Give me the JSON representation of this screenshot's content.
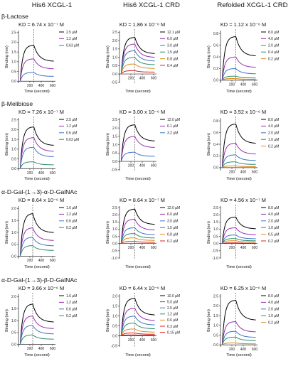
{
  "column_headers": [
    "His6 XCGL-1",
    "His6 XCGL-1 CRD",
    "Refolded XCGL-1 CRD"
  ],
  "row_titles": [
    "β-Lactose",
    "β-Melibiose",
    "α-D-Gal-(1→3)-α-D-GalNAc",
    "α-D-Gal-(1→3)-β-D-GalNAc"
  ],
  "colors": {
    "series": [
      "#000000",
      "#9b2fae",
      "#3f73c4",
      "#2a8f6a",
      "#e08a1e",
      "#d92020"
    ],
    "dashed_line": "#555555"
  },
  "chart_data": [
    {
      "type": "line",
      "kd": "KD = 6.74 x 10⁻⁷ M",
      "xlabel": "Time (second)",
      "ylabel": "Binding (nm)",
      "x_ticks": [
        "",
        "200",
        "400",
        "600"
      ],
      "y_ticks": [
        "0.0",
        "0.5",
        "1.0",
        "1.5",
        "2.0",
        "2.5"
      ],
      "xlim": [
        0,
        650
      ],
      "ylim": [
        -0.1,
        2.6
      ],
      "dissociation_start": 270,
      "series": [
        {
          "name": "2.5 µM",
          "plateau": 1.85
        },
        {
          "name": "1.2 µM",
          "plateau": 1.15
        },
        {
          "name": "0.63 µM",
          "plateau": 0.45
        }
      ]
    },
    {
      "type": "line",
      "kd": "KD = 1.86 x 10⁻⁶ M",
      "xlabel": "Time (second)",
      "ylabel": "Binding (nm)",
      "x_ticks": [
        "",
        "200",
        "400",
        "600"
      ],
      "y_ticks": [
        "-0.5",
        "0.0",
        "0.5",
        "1.0",
        "1.5",
        "2.0",
        "2.5"
      ],
      "xlim": [
        0,
        650
      ],
      "ylim": [
        -0.55,
        2.6
      ],
      "dissociation_start": 270,
      "series": [
        {
          "name": "12.1 µM",
          "plateau": 2.2
        },
        {
          "name": "6.0 µM",
          "plateau": 1.8
        },
        {
          "name": "3.0 µM",
          "plateau": 1.4
        },
        {
          "name": "1.5 µM",
          "plateau": 1.0
        },
        {
          "name": "0.8 µM",
          "plateau": 0.6
        },
        {
          "name": "0.4 µM",
          "plateau": 0.2
        }
      ]
    },
    {
      "type": "line",
      "kd": "KD = 1.12 x 10⁻⁶ M",
      "xlabel": "Time (second)",
      "ylabel": "Binding (nm)",
      "x_ticks": [
        "",
        "200",
        "400",
        "600"
      ],
      "y_ticks": [
        "0.0",
        "0.2",
        "0.4",
        "0.6",
        "0.8"
      ],
      "xlim": [
        0,
        650
      ],
      "ylim": [
        -0.05,
        0.85
      ],
      "dissociation_start": 270,
      "series": [
        {
          "name": "8.0 µM",
          "plateau": 0.75
        },
        {
          "name": "4.0 µM",
          "plateau": 0.4
        },
        {
          "name": "2.0 µM",
          "plateau": 0.2
        },
        {
          "name": "0.4 µM",
          "plateau": 0.07
        },
        {
          "name": "0.2 µM",
          "plateau": 0.03
        }
      ]
    },
    {
      "type": "line",
      "kd": "KD = 7.26 x 10⁻⁷ M",
      "xlabel": "Time (second)",
      "ylabel": "Binding (nm)",
      "x_ticks": [
        "",
        "200",
        "400",
        "600"
      ],
      "y_ticks": [
        "0.0",
        "0.5",
        "1.0",
        "1.5",
        "2.0",
        "2.5"
      ],
      "xlim": [
        0,
        650
      ],
      "ylim": [
        -0.1,
        2.6
      ],
      "dissociation_start": 270,
      "series": [
        {
          "name": "2.5 µM",
          "plateau": 2.15
        },
        {
          "name": "1.2 µM",
          "plateau": 1.6
        },
        {
          "name": "0.6 µM",
          "plateau": 1.1
        },
        {
          "name": "0.63 µM",
          "plateau": 0.35
        }
      ]
    },
    {
      "type": "line",
      "kd": "KD = 3.00 x 10⁻⁶ M",
      "xlabel": "Time (second)",
      "ylabel": "Binding (nm)",
      "x_ticks": [
        "",
        "200",
        "400",
        "600"
      ],
      "y_ticks": [
        "-0.5",
        "0.0",
        "0.5",
        "1.0",
        "1.5",
        "2.0",
        "2.5"
      ],
      "xlim": [
        0,
        650
      ],
      "ylim": [
        -0.55,
        2.6
      ],
      "dissociation_start": 270,
      "series": [
        {
          "name": "12.0 µM",
          "plateau": 2.2
        },
        {
          "name": "6.1 µM",
          "plateau": 1.5
        },
        {
          "name": "3.2 µM",
          "plateau": 0.55
        }
      ]
    },
    {
      "type": "line",
      "kd": "KD = 3.52 x 10⁻⁶ M",
      "xlabel": "Time (second)",
      "ylabel": "Binding (nm)",
      "x_ticks": [
        "",
        "200",
        "400",
        "600"
      ],
      "y_ticks": [
        "0.0",
        "0.2",
        "0.4",
        "0.6",
        "0.8"
      ],
      "xlim": [
        0,
        650
      ],
      "ylim": [
        -0.05,
        0.85
      ],
      "dissociation_start": 270,
      "series": [
        {
          "name": "8.0 µM",
          "plateau": 0.75
        },
        {
          "name": "4.0 µM",
          "plateau": 0.42
        },
        {
          "name": "2.0 µM",
          "plateau": 0.22
        },
        {
          "name": "1.0 µM",
          "plateau": 0.1
        },
        {
          "name": "0.2 µM",
          "plateau": 0.03
        }
      ]
    },
    {
      "type": "line",
      "kd": "KD = 8.64 x 10⁻⁶ M",
      "xlabel": "Time (second)",
      "ylabel": "Binding (nm)",
      "x_ticks": [
        "",
        "200",
        "400",
        "600"
      ],
      "y_ticks": [
        "0.0",
        "0.5",
        "1.0",
        "1.5",
        "2.0"
      ],
      "xlim": [
        0,
        650
      ],
      "ylim": [
        -0.1,
        2.1
      ],
      "dissociation_start": 250,
      "series": [
        {
          "name": "1.6 µM",
          "plateau": 1.8
        },
        {
          "name": "1.2 µM",
          "plateau": 1.2
        },
        {
          "name": "0.6 µM",
          "plateau": 0.8
        },
        {
          "name": "0.2 µM",
          "plateau": 0.45
        }
      ]
    },
    {
      "type": "line",
      "kd": "KD = 8.64 x 10⁻⁷ M",
      "xlabel": "Time (second)",
      "ylabel": "Binding (nm)",
      "x_ticks": [
        "",
        "200",
        "400",
        "600"
      ],
      "y_ticks": [
        "-1.0",
        "-0.5",
        "0.0",
        "0.5",
        "1.0",
        "1.5",
        "2.0",
        "2.5"
      ],
      "xlim": [
        0,
        650
      ],
      "ylim": [
        -1.05,
        2.6
      ],
      "dissociation_start": 270,
      "series": [
        {
          "name": "12.0 µM",
          "plateau": 2.4
        },
        {
          "name": "6.0 µM",
          "plateau": 1.7
        },
        {
          "name": "3.0 µM",
          "plateau": 1.1
        },
        {
          "name": "1.5 µM",
          "plateau": 0.7
        },
        {
          "name": "0.8 µM",
          "plateau": 0.4
        },
        {
          "name": "0.2 µM",
          "plateau": 0.15
        }
      ]
    },
    {
      "type": "line",
      "kd": "KD = 4.56 x 10⁻⁷ M",
      "xlabel": "Time (second)",
      "ylabel": "Binding (nm)",
      "x_ticks": [
        "",
        "200",
        "400",
        "600"
      ],
      "y_ticks": [
        "-1.0",
        "-0.5",
        "0.0",
        "0.5",
        "1.0",
        "1.5",
        "2.0",
        "2.5"
      ],
      "xlim": [
        0,
        650
      ],
      "ylim": [
        -1.05,
        2.6
      ],
      "dissociation_start": 270,
      "series": [
        {
          "name": "8.0 µM",
          "plateau": 1.85
        },
        {
          "name": "4.0 µM",
          "plateau": 1.1
        },
        {
          "name": "2.0 µM",
          "plateau": 0.6
        },
        {
          "name": "1.0 µM",
          "plateau": 0.35
        },
        {
          "name": "0.5 µM",
          "plateau": 0.2
        },
        {
          "name": "0.2 µM",
          "plateau": 0.05
        }
      ]
    },
    {
      "type": "line",
      "kd": "KD = 3.66 x 10⁻⁶ M",
      "xlabel": "Time (second)",
      "ylabel": "Binding (nm)",
      "x_ticks": [
        "",
        "200",
        "400",
        "600"
      ],
      "y_ticks": [
        "0.0",
        "0.5",
        "1.0",
        "1.5",
        "2.0"
      ],
      "xlim": [
        0,
        650
      ],
      "ylim": [
        -0.1,
        2.1
      ],
      "dissociation_start": 250,
      "series": [
        {
          "name": "1.6 µM",
          "plateau": 1.7
        },
        {
          "name": "1.2 µM",
          "plateau": 1.2
        },
        {
          "name": "0.6 µM",
          "plateau": 0.8
        },
        {
          "name": "0.2 µM",
          "plateau": 0.4
        }
      ]
    },
    {
      "type": "line",
      "kd": "KD = 6.44 x 10⁻⁶ M",
      "xlabel": "Time (second)",
      "ylabel": "Binding (nm)",
      "x_ticks": [
        "",
        "200",
        "400",
        "600"
      ],
      "y_ticks": [
        "-0.5",
        "0.0",
        "0.5",
        "1.0",
        "1.5",
        "2.0"
      ],
      "xlim": [
        0,
        650
      ],
      "ylim": [
        -0.55,
        2.1
      ],
      "dissociation_start": 270,
      "series": [
        {
          "name": "10.0 µM",
          "plateau": 1.9
        },
        {
          "name": "5.0 µM",
          "plateau": 1.4
        },
        {
          "name": "2.5 µM",
          "plateau": 1.0
        },
        {
          "name": "1.2 µM",
          "plateau": 0.65
        },
        {
          "name": "0.6 µM",
          "plateau": 0.35
        },
        {
          "name": "0.3 µM",
          "plateau": 0.15
        },
        {
          "name": "0.15 µM",
          "plateau": 0.05
        }
      ]
    },
    {
      "type": "line",
      "kd": "KD = 6.25 x 10⁻⁶ M",
      "xlabel": "Time (second)",
      "ylabel": "Binding (nm)",
      "x_ticks": [
        "",
        "200",
        "400",
        "600"
      ],
      "y_ticks": [
        "0.0",
        "0.5",
        "1.0",
        "1.5",
        "2.0",
        "2.5"
      ],
      "xlim": [
        0,
        650
      ],
      "ylim": [
        -0.1,
        2.6
      ],
      "dissociation_start": 270,
      "series": [
        {
          "name": "8.0 µM",
          "plateau": 2.3
        },
        {
          "name": "4.0 µM",
          "plateau": 1.2
        },
        {
          "name": "2.0 µM",
          "plateau": 0.7
        },
        {
          "name": "1.0 µM",
          "plateau": 0.4
        },
        {
          "name": "0.2 µM",
          "plateau": 0.1
        }
      ]
    }
  ]
}
